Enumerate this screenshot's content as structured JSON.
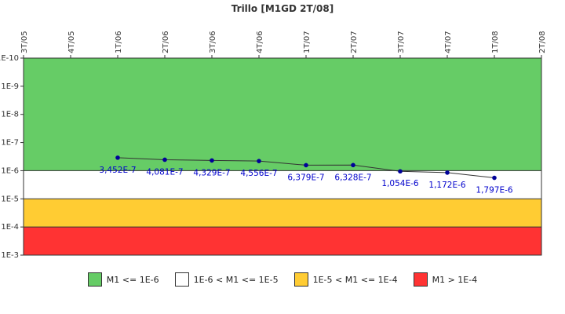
{
  "chart_data": {
    "type": "line",
    "title": "Trillo [M1GD 2T/08]",
    "xlabel": "",
    "ylabel": "",
    "y_scale": "log-reversed",
    "ylim": [
      1e-10,
      0.001
    ],
    "y_ticks": [
      "1E-10",
      "1E-9",
      "1E-8",
      "1E-7",
      "1E-6",
      "1E-5",
      "1E-4",
      "1E-3"
    ],
    "x_ticks": [
      "3T/05",
      "4T/05",
      "1T/06",
      "2T/06",
      "3T/06",
      "4T/06",
      "1T/07",
      "2T/07",
      "3T/07",
      "4T/07",
      "1T/08",
      "2T/08"
    ],
    "grid": false,
    "legend_position": "bottom",
    "bands": [
      {
        "label": "M1 <= 1E-6",
        "from": 1e-10,
        "to": 1e-06,
        "color": "#66cc66"
      },
      {
        "label": "1E-6 < M1 <= 1E-5",
        "from": 1e-06,
        "to": 1e-05,
        "color": "#ffffff"
      },
      {
        "label": "1E-5 < M1 <= 1E-4",
        "from": 1e-05,
        "to": 0.0001,
        "color": "#ffcc33"
      },
      {
        "label": "M1 > 1E-4",
        "from": 0.0001,
        "to": 0.001,
        "color": "#ff3333"
      }
    ],
    "series": [
      {
        "x": [
          "1T/06",
          "2T/06",
          "3T/06",
          "4T/06",
          "1T/07",
          "2T/07",
          "3T/07",
          "4T/07",
          "1T/08"
        ],
        "values": [
          3.452e-07,
          4.081e-07,
          4.329e-07,
          4.556e-07,
          6.379e-07,
          6.328e-07,
          1.054e-06,
          1.172e-06,
          1.797e-06
        ],
        "labels": [
          "3,452E-7",
          "4,081E-7",
          "4,329E-7",
          "4,556E-7",
          "6,379E-7",
          "6,328E-7",
          "1,054E-6",
          "1,172E-6",
          "1,797E-6"
        ],
        "line_color": "#333333",
        "marker_color": "#000099"
      }
    ]
  }
}
